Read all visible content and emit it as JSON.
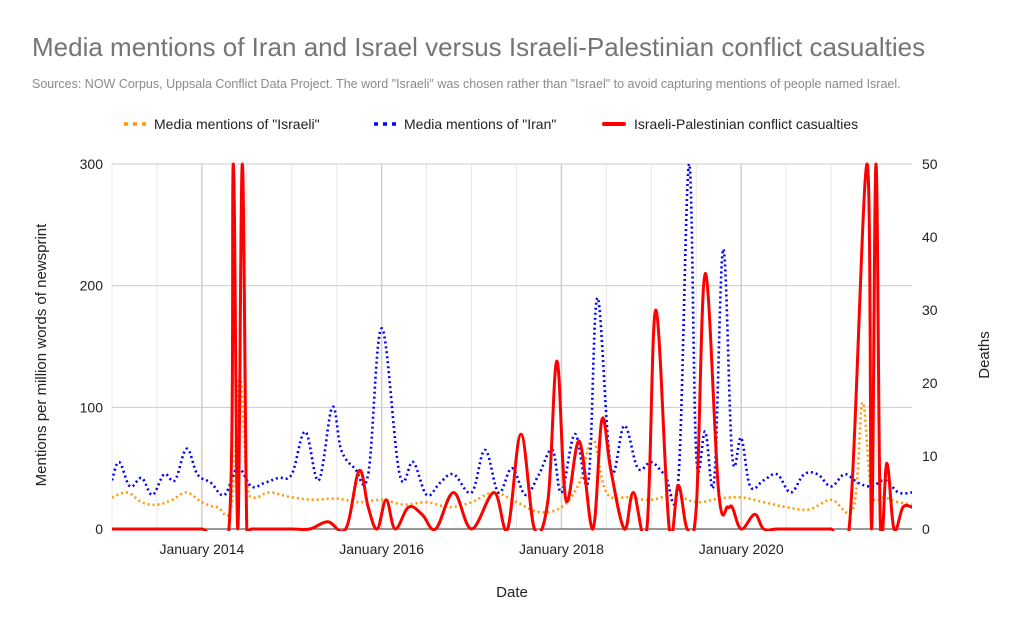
{
  "chart_data": {
    "type": "line",
    "title": "Media mentions of Iran and Israel versus Israeli-Palestinian conflict casualties",
    "subtitle": "Sources: NOW Corpus, Uppsala Conflict Data Project. The word \"Israeli\" was chosen rather than \"Israel\" to avoid capturing mentions of people named Israel.",
    "xlabel": "Date",
    "ylabel": "Mentions per million words of newsprint",
    "y2label": "Deaths",
    "x_ticks": [
      "January 2014",
      "January 2016",
      "January 2018",
      "January 2020"
    ],
    "x_tick_values": [
      2014.0,
      2016.0,
      2018.0,
      2020.0
    ],
    "xlim": [
      2013.0,
      2021.9
    ],
    "ylim": [
      0,
      300
    ],
    "y2lim": [
      0,
      50
    ],
    "y_ticks": [
      0,
      100,
      200,
      300
    ],
    "y2_ticks": [
      0,
      10,
      20,
      30,
      40,
      50
    ],
    "grid": true,
    "legend_position": "top",
    "series": [
      {
        "name": "Media mentions of \"Israeli\"",
        "axis": "left",
        "style": "dotted",
        "color": "#ff9900",
        "x": [
          2013.0,
          2013.17,
          2013.33,
          2013.5,
          2013.67,
          2013.83,
          2014.0,
          2014.17,
          2014.33,
          2014.42,
          2014.5,
          2014.58,
          2014.75,
          2015.0,
          2015.25,
          2015.5,
          2015.75,
          2016.0,
          2016.25,
          2016.5,
          2016.75,
          2017.0,
          2017.25,
          2017.5,
          2017.75,
          2018.0,
          2018.2,
          2018.35,
          2018.5,
          2018.75,
          2019.0,
          2019.25,
          2019.5,
          2019.75,
          2020.0,
          2020.25,
          2020.5,
          2020.75,
          2021.0,
          2021.25,
          2021.35,
          2021.45,
          2021.6,
          2021.75,
          2021.9
        ],
        "values": [
          26,
          30,
          22,
          20,
          24,
          30,
          22,
          18,
          20,
          125,
          40,
          26,
          30,
          26,
          24,
          25,
          22,
          24,
          20,
          22,
          18,
          22,
          30,
          22,
          14,
          18,
          38,
          74,
          30,
          26,
          24,
          28,
          22,
          25,
          26,
          22,
          18,
          16,
          24,
          18,
          104,
          30,
          26,
          22,
          20
        ]
      },
      {
        "name": "Media mentions of \"Iran\"",
        "axis": "left",
        "style": "dotted",
        "color": "#0000ff",
        "x": [
          2013.0,
          2013.08,
          2013.2,
          2013.33,
          2013.45,
          2013.58,
          2013.7,
          2013.83,
          2013.95,
          2014.1,
          2014.25,
          2014.4,
          2014.55,
          2014.7,
          2014.85,
          2015.0,
          2015.15,
          2015.3,
          2015.45,
          2015.55,
          2015.7,
          2015.85,
          2016.0,
          2016.2,
          2016.35,
          2016.5,
          2016.65,
          2016.8,
          2017.0,
          2017.15,
          2017.3,
          2017.45,
          2017.6,
          2017.75,
          2017.9,
          2018.0,
          2018.15,
          2018.3,
          2018.4,
          2018.55,
          2018.7,
          2018.85,
          2019.0,
          2019.15,
          2019.3,
          2019.42,
          2019.5,
          2019.6,
          2019.7,
          2019.8,
          2019.9,
          2020.0,
          2020.1,
          2020.25,
          2020.4,
          2020.55,
          2020.7,
          2020.85,
          2021.0,
          2021.15,
          2021.3,
          2021.45,
          2021.6,
          2021.75,
          2021.9
        ],
        "values": [
          40,
          55,
          35,
          42,
          28,
          45,
          40,
          66,
          45,
          38,
          28,
          50,
          35,
          38,
          42,
          45,
          80,
          40,
          100,
          65,
          50,
          45,
          165,
          45,
          55,
          28,
          38,
          45,
          30,
          65,
          30,
          50,
          28,
          45,
          65,
          30,
          78,
          40,
          190,
          50,
          85,
          50,
          55,
          45,
          40,
          300,
          60,
          80,
          40,
          230,
          60,
          75,
          35,
          40,
          45,
          30,
          45,
          45,
          35,
          45,
          38,
          35,
          40,
          30,
          30
        ]
      },
      {
        "name": "Israeli-Palestinian conflict casualties",
        "axis": "right",
        "style": "solid",
        "color": "#ff0000",
        "x": [
          2013.0,
          2013.5,
          2014.0,
          2014.3,
          2014.35,
          2014.4,
          2014.45,
          2014.5,
          2014.55,
          2015.0,
          2015.2,
          2015.4,
          2015.6,
          2015.75,
          2015.85,
          2015.95,
          2016.05,
          2016.15,
          2016.3,
          2016.45,
          2016.6,
          2016.8,
          2017.0,
          2017.25,
          2017.4,
          2017.55,
          2017.7,
          2017.85,
          2017.95,
          2018.05,
          2018.2,
          2018.35,
          2018.45,
          2018.55,
          2018.7,
          2018.8,
          2018.95,
          2019.05,
          2019.2,
          2019.3,
          2019.4,
          2019.5,
          2019.6,
          2019.75,
          2019.85,
          2019.9,
          2020.0,
          2020.15,
          2020.25,
          2020.4,
          2020.6,
          2020.8,
          2021.0,
          2021.2,
          2021.4,
          2021.45,
          2021.5,
          2021.55,
          2021.62,
          2021.7,
          2021.8,
          2021.9
        ],
        "values": [
          0,
          0,
          0,
          0,
          50,
          0,
          50,
          0,
          0,
          0,
          0,
          1,
          0,
          8,
          3,
          0,
          4,
          0,
          3,
          2,
          0,
          5,
          0,
          5,
          0,
          13,
          0,
          4,
          23,
          4,
          12,
          0,
          15,
          8,
          0,
          5,
          0,
          30,
          0,
          6,
          0,
          3,
          35,
          5,
          3,
          3,
          0,
          2,
          0,
          0,
          0,
          0,
          0,
          0,
          50,
          0,
          50,
          0,
          9,
          0,
          3,
          3
        ]
      }
    ]
  }
}
